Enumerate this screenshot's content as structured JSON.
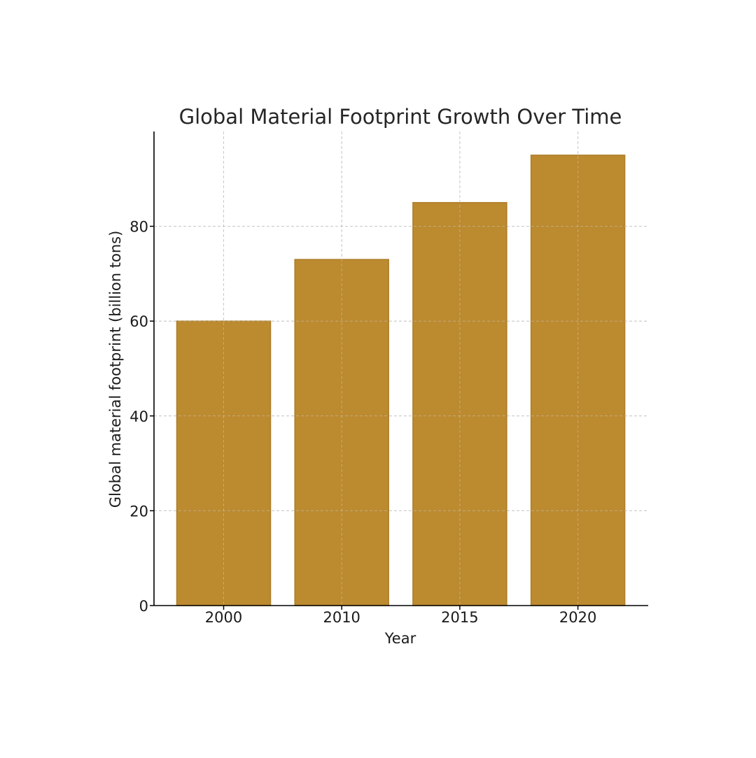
{
  "chart_data": {
    "type": "bar",
    "title": "Global Material Footprint Growth Over Time",
    "xlabel": "Year",
    "ylabel": "Global material footprint (billion tons)",
    "categories": [
      "2000",
      "2010",
      "2015",
      "2020"
    ],
    "values": [
      60,
      73,
      85,
      95
    ],
    "ylim": [
      0,
      100
    ],
    "yticks": [
      "0",
      "20",
      "40",
      "60",
      "80"
    ],
    "grid": true,
    "legend": "none"
  },
  "colors": {
    "bar_fill": "#bc8a2f",
    "bar_edge": "#ad7e2a",
    "grid": "#c8c8c8",
    "axis": "#000000",
    "text": "#1a1a1a",
    "title_text": "#262626"
  }
}
